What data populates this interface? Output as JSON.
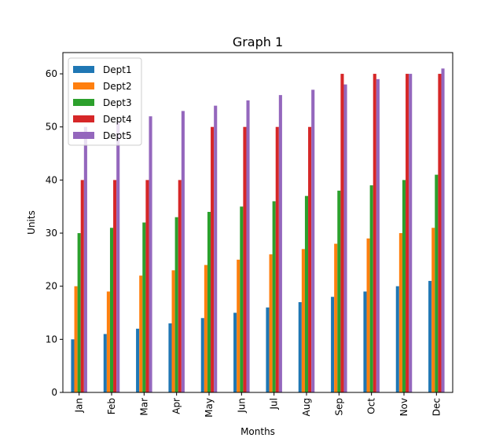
{
  "chart_data": {
    "type": "bar",
    "title": "Graph 1",
    "xlabel": "Months",
    "ylabel": "Units",
    "categories": [
      "Jan",
      "Feb",
      "Mar",
      "Apr",
      "May",
      "Jun",
      "Jul",
      "Aug",
      "Sep",
      "Oct",
      "Nov",
      "Dec"
    ],
    "ylim": [
      0,
      64
    ],
    "yticks": [
      0,
      10,
      20,
      30,
      40,
      50,
      60
    ],
    "grid": false,
    "legend_position": "top-left",
    "series": [
      {
        "name": "Dept1",
        "color": "#1f77b4",
        "values": [
          10,
          11,
          12,
          13,
          14,
          15,
          16,
          17,
          18,
          19,
          20,
          21
        ]
      },
      {
        "name": "Dept2",
        "color": "#ff7f0e",
        "values": [
          20,
          19,
          22,
          23,
          24,
          25,
          26,
          27,
          28,
          29,
          30,
          31
        ]
      },
      {
        "name": "Dept3",
        "color": "#2ca02c",
        "values": [
          30,
          31,
          32,
          33,
          34,
          35,
          36,
          37,
          38,
          39,
          40,
          41
        ]
      },
      {
        "name": "Dept4",
        "color": "#d62728",
        "values": [
          40,
          40,
          40,
          40,
          50,
          50,
          50,
          50,
          60,
          60,
          60,
          60
        ]
      },
      {
        "name": "Dept5",
        "color": "#9467bd",
        "values": [
          50,
          51,
          52,
          53,
          54,
          55,
          56,
          57,
          58,
          59,
          60,
          61
        ]
      }
    ]
  }
}
